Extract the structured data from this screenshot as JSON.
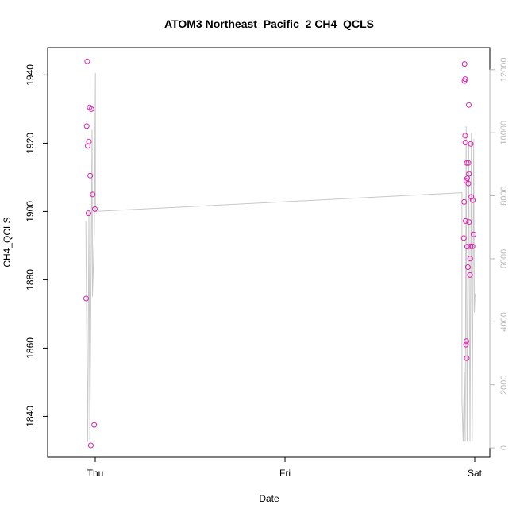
{
  "chart_data": {
    "type": "scatter",
    "title": "ATOM3 Northeast_Pacific_2 CH4_QCLS",
    "xlabel": "Date",
    "ylabel": "CH4_QCLS",
    "x_ticks": [
      "Thu",
      "Fri",
      "Sat"
    ],
    "y_ticks": [
      1840,
      1860,
      1880,
      1900,
      1920,
      1940
    ],
    "y2_ticks": [
      0,
      2000,
      4000,
      6000,
      8000,
      10000,
      12000
    ],
    "ylim": [
      1828,
      1948
    ],
    "y2lim": [
      -300,
      12700
    ],
    "grid": false,
    "legend": "none",
    "colors": {
      "points": "#e01fb3",
      "line": "#c8c8c8",
      "right_axis": "#b8b8b8",
      "axis": "#000000"
    },
    "series": [
      {
        "kind": "points",
        "axis": "left",
        "points": [
          {
            "x": "Wed 22:51",
            "y": 1874.5
          },
          {
            "x": "Wed 22:55",
            "y": 1925.0
          },
          {
            "x": "Wed 22:59",
            "y": 1944.0
          },
          {
            "x": "Wed 23:03",
            "y": 1919.2
          },
          {
            "x": "Wed 23:08",
            "y": 1899.5
          },
          {
            "x": "Wed 23:12",
            "y": 1920.5
          },
          {
            "x": "Wed 23:17",
            "y": 1930.5
          },
          {
            "x": "Wed 23:22",
            "y": 1910.5
          },
          {
            "x": "Wed 23:26",
            "y": 1831.5
          },
          {
            "x": "Wed 23:31",
            "y": 1930.0
          },
          {
            "x": "Wed 23:41",
            "y": 1905.0
          },
          {
            "x": "Wed 23:52",
            "y": 1837.5
          },
          {
            "x": "Wed 23:57",
            "y": 1900.7
          },
          {
            "x": "Fri 22:37",
            "y": 1892.2
          },
          {
            "x": "Fri 22:40",
            "y": 1902.8
          },
          {
            "x": "Fri 22:42",
            "y": 1938.2
          },
          {
            "x": "Fri 22:43",
            "y": 1943.2
          },
          {
            "x": "Fri 22:47",
            "y": 1922.2
          },
          {
            "x": "Fri 22:48",
            "y": 1938.8
          },
          {
            "x": "Fri 22:49",
            "y": 1920.2
          },
          {
            "x": "Fri 22:51",
            "y": 1897.2
          },
          {
            "x": "Fri 22:54",
            "y": 1861.0
          },
          {
            "x": "Fri 22:56",
            "y": 1909.0
          },
          {
            "x": "Fri 22:57",
            "y": 1862.0
          },
          {
            "x": "Fri 22:59",
            "y": 1857.0
          },
          {
            "x": "Fri 23:00",
            "y": 1914.2
          },
          {
            "x": "Fri 23:02",
            "y": 1889.7
          },
          {
            "x": "Fri 23:03",
            "y": 1909.7
          },
          {
            "x": "Fri 23:08",
            "y": 1883.7
          },
          {
            "x": "Fri 23:11",
            "y": 1908.2
          },
          {
            "x": "Fri 23:12",
            "y": 1914.2
          },
          {
            "x": "Fri 23:15",
            "y": 1931.2
          },
          {
            "x": "Fri 23:16",
            "y": 1911.0
          },
          {
            "x": "Fri 23:17",
            "y": 1896.9
          },
          {
            "x": "Fri 23:24",
            "y": 1881.4
          },
          {
            "x": "Fri 23:25",
            "y": 1886.2
          },
          {
            "x": "Fri 23:28",
            "y": 1889.8
          },
          {
            "x": "Fri 23:30",
            "y": 1919.8
          },
          {
            "x": "Fri 23:34",
            "y": 1904.3
          },
          {
            "x": "Fri 23:43",
            "y": 1889.8
          },
          {
            "x": "Fri 23:45",
            "y": 1903.3
          },
          {
            "x": "Fri 23:51",
            "y": 1893.3
          }
        ]
      },
      {
        "kind": "line",
        "axis": "right",
        "points": [
          {
            "x": "Wed 22:48",
            "y": 7200
          },
          {
            "x": "Wed 23:03",
            "y": 200
          },
          {
            "x": "Wed 23:12",
            "y": 7500
          },
          {
            "x": "Wed 23:19",
            "y": 200
          },
          {
            "x": "Wed 23:36",
            "y": 10100
          },
          {
            "x": "Wed 23:39",
            "y": 4800
          },
          {
            "x": "Wed 23:53",
            "y": 6800
          },
          {
            "x": "Thu 00:01",
            "y": 11900
          },
          {
            "x": "Thu 00:01",
            "y": 7500
          },
          {
            "x": "Fri 22:23",
            "y": 8100
          },
          {
            "x": "Fri 22:23",
            "y": 1500
          },
          {
            "x": "Fri 22:32",
            "y": 200
          },
          {
            "x": "Fri 22:41",
            "y": 2400
          },
          {
            "x": "Fri 22:48",
            "y": 200
          },
          {
            "x": "Fri 22:55",
            "y": 10200
          },
          {
            "x": "Fri 23:02",
            "y": 200
          },
          {
            "x": "Fri 23:14",
            "y": 9600
          },
          {
            "x": "Fri 23:24",
            "y": 200
          },
          {
            "x": "Fri 23:34",
            "y": 10000
          },
          {
            "x": "Fri 23:41",
            "y": 200
          },
          {
            "x": "Fri 23:52",
            "y": 9800
          },
          {
            "x": "Fri 23:57",
            "y": 4300
          },
          {
            "x": "Sat 00:03",
            "y": 4900
          }
        ]
      }
    ]
  }
}
